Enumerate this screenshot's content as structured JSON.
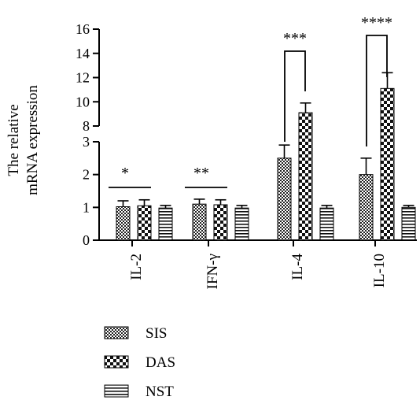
{
  "chart_data": {
    "type": "bar",
    "ylabel": [
      "The relative",
      "mRNA expression"
    ],
    "categories": [
      "IL-2",
      "IFN-γ",
      "IL-4",
      "IL-10"
    ],
    "axis_break": {
      "lower_max": 3,
      "upper_min": 8
    },
    "yticks_lower": [
      0,
      1,
      2,
      3
    ],
    "yticks_upper": [
      8,
      10,
      12,
      14,
      16
    ],
    "ylim": [
      0,
      16
    ],
    "grid": false,
    "legend_position": "bottom",
    "series": [
      {
        "name": "SIS",
        "pattern": "fine-checker",
        "values": [
          1.02,
          1.1,
          2.5,
          2.0
        ],
        "errors": [
          0.18,
          0.15,
          0.4,
          0.5
        ]
      },
      {
        "name": "DAS",
        "pattern": "coarse-checker",
        "values": [
          1.05,
          1.08,
          9.1,
          11.1
        ],
        "errors": [
          0.18,
          0.15,
          0.8,
          1.3
        ]
      },
      {
        "name": "NST",
        "pattern": "horizontal-stripes",
        "values": [
          0.98,
          0.98,
          0.98,
          1.0
        ],
        "errors": [
          0.08,
          0.08,
          0.08,
          0.06
        ]
      }
    ],
    "significance": [
      {
        "label": "*",
        "category": "IL-2",
        "style": "line"
      },
      {
        "label": "**",
        "category": "IFN-γ",
        "style": "line"
      },
      {
        "label": "***",
        "category": "IL-4",
        "style": "bracket"
      },
      {
        "label": "****",
        "category": "IL-10",
        "style": "bracket"
      }
    ]
  }
}
